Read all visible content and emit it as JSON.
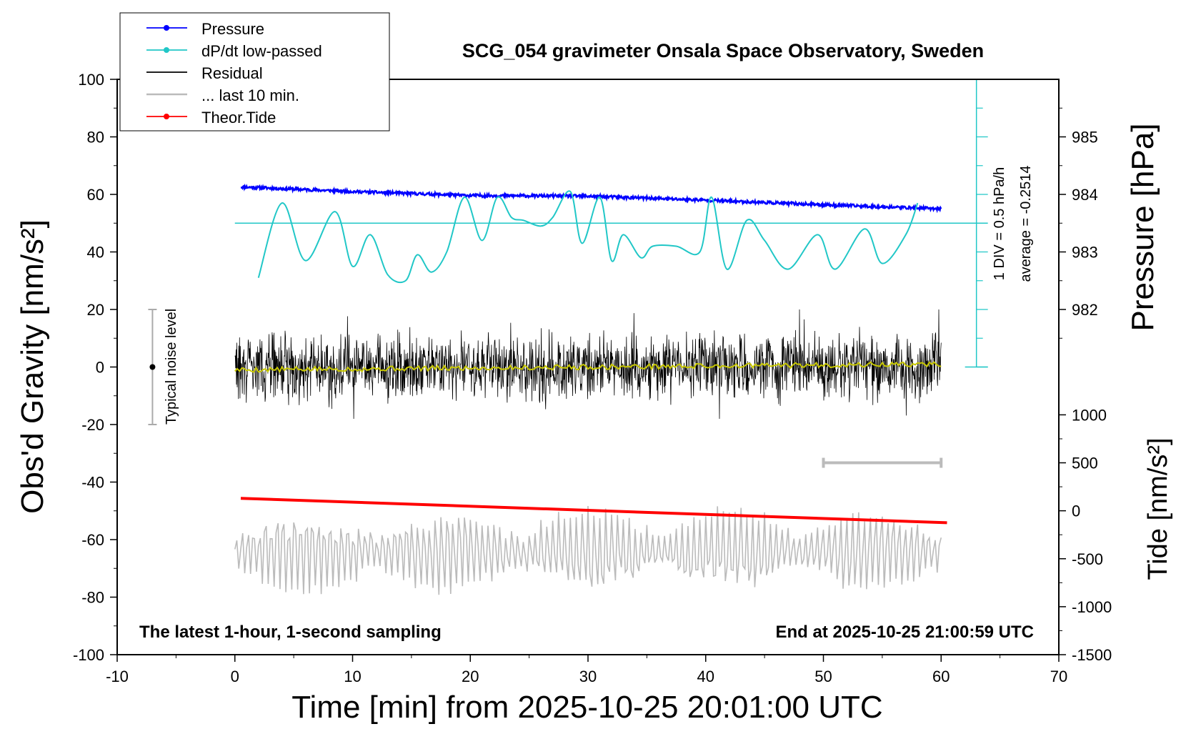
{
  "chart_data": {
    "type": "line",
    "title": "SCG_054 gravimeter Onsala Space Observatory, Sweden",
    "xlabel": "Time [min] from 2025-10-25 20:01:00 UTC",
    "ylabel_left": "Obs'd Gravity [nm/s²]",
    "ylabel_pressure": "Pressure [hPa]",
    "ylabel_tide": "Tide [nm/s²]",
    "xlim": [
      -10,
      70
    ],
    "ylim": [
      -100,
      100
    ],
    "pressure_lim": [
      981,
      986
    ],
    "tide_lim": [
      -1500,
      1100
    ],
    "x_ticks": [
      "-10",
      "0",
      "10",
      "20",
      "30",
      "40",
      "50",
      "60",
      "70"
    ],
    "y_ticks": [
      "-100",
      "-80",
      "-60",
      "-40",
      "-20",
      "0",
      "20",
      "40",
      "60",
      "80",
      "100"
    ],
    "pressure_ticks": [
      "982",
      "983",
      "984",
      "985"
    ],
    "tide_ticks": [
      "-1500",
      "-1000",
      "-500",
      "0",
      "500",
      "1000"
    ],
    "legend": {
      "position": "top-left",
      "entries": [
        {
          "label": "Pressure",
          "color": "#0000ff"
        },
        {
          "label": "dP/dt low-passed",
          "color": "#21c7c7"
        },
        {
          "label": "Residual",
          "color": "#000000"
        },
        {
          "label": "... last 10 min.",
          "color": "#bbbbbb"
        },
        {
          "label": "Theor.Tide",
          "color": "#ff0000"
        }
      ]
    },
    "annotations": {
      "noise": "Typical noise level",
      "div": "1 DIV = 0.5 hPa/h",
      "average": "average = -0.2514",
      "bottom_left": "The latest 1-hour, 1-second sampling",
      "bottom_right": "End at 2025-10-25 21:00:59 UTC"
    },
    "typical_noise_level": {
      "x": -7,
      "center": 0,
      "range": [
        -20,
        20
      ]
    },
    "last10_bar_x": [
      50,
      60
    ],
    "series": [
      {
        "name": "Pressure",
        "axis": "pressure",
        "x": [
          0.5,
          10,
          20,
          30,
          40,
          50,
          60
        ],
        "values": [
          984.13,
          984.05,
          983.98,
          983.97,
          983.9,
          983.82,
          983.75
        ]
      },
      {
        "name": "dP/dt low-passed",
        "axis": "left",
        "x": [
          2,
          4,
          6,
          8.5,
          10,
          11.5,
          13,
          14.5,
          15.5,
          16.7,
          18,
          19.5,
          21,
          22.3,
          23.5,
          24.5,
          26,
          27,
          28.5,
          29.5,
          31,
          32,
          33,
          34.5,
          35.5,
          37.5,
          39.5,
          40.5,
          41.8,
          43.5,
          45,
          47,
          49.5,
          51,
          53.5,
          55,
          57,
          58
        ],
        "values": [
          31,
          57,
          37,
          54,
          35,
          46,
          32,
          30,
          39,
          33,
          40,
          59,
          44,
          59,
          52,
          51,
          49,
          52,
          61,
          43,
          59,
          37,
          46,
          38,
          42,
          42,
          40,
          59,
          34,
          51,
          44,
          34,
          46,
          34,
          48,
          36,
          46,
          57
        ]
      },
      {
        "name": "Residual",
        "axis": "left",
        "x": [
          0,
          60
        ],
        "range": [
          -18,
          20
        ],
        "smoothed": [
          -1,
          1
        ],
        "smoothed_color": "#c8c800"
      },
      {
        "name": "... last 10 min.",
        "axis": "left",
        "x": [
          0,
          60
        ],
        "center": -64,
        "range": [
          -80,
          -42
        ]
      },
      {
        "name": "Theor.Tide",
        "axis": "tide",
        "x": [
          0.5,
          60.5
        ],
        "values": [
          130,
          -125
        ]
      }
    ]
  }
}
